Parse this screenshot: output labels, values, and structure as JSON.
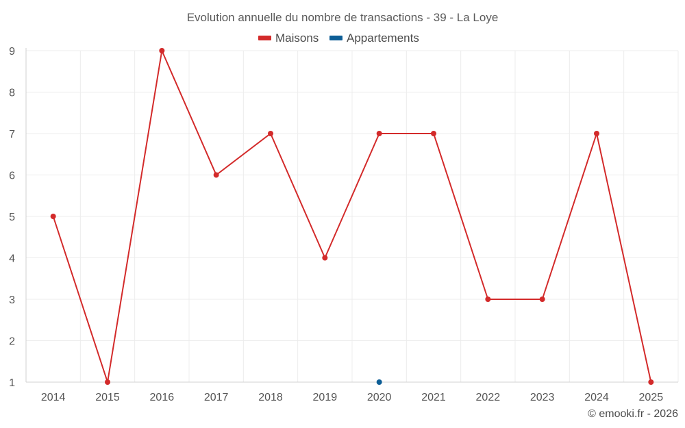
{
  "chart_data": {
    "type": "line",
    "title": "Evolution annuelle du nombre de transactions - 39 - La Loye",
    "categories": [
      "2014",
      "2015",
      "2016",
      "2017",
      "2018",
      "2019",
      "2020",
      "2021",
      "2022",
      "2023",
      "2024",
      "2025"
    ],
    "series": [
      {
        "name": "Maisons",
        "color": "#d32a2a",
        "values": [
          5,
          1,
          9,
          6,
          7,
          4,
          7,
          7,
          3,
          3,
          7,
          1
        ]
      },
      {
        "name": "Appartements",
        "color": "#0d5e96",
        "values": [
          null,
          null,
          null,
          null,
          null,
          null,
          1,
          null,
          null,
          null,
          null,
          null
        ]
      }
    ],
    "ylim": [
      1,
      9
    ],
    "yticks": [
      1,
      2,
      3,
      4,
      5,
      6,
      7,
      8,
      9
    ],
    "xlabel": "",
    "ylabel": "",
    "grid": true,
    "legend_position": "top-center"
  },
  "credit": "© emooki.fr - 2026"
}
